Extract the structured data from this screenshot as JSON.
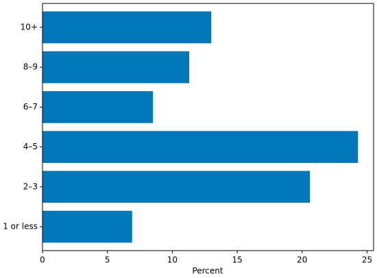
{
  "chart_data": {
    "type": "barh",
    "xlabel": "Percent",
    "categories": [
      "1 or less",
      "2–3",
      "4–5",
      "6–7",
      "8–9",
      "10+"
    ],
    "values": [
      6.9,
      20.6,
      24.3,
      8.5,
      11.3,
      13.0
    ],
    "color": "#0077b8",
    "xlim": [
      0,
      25.5
    ],
    "xticks": [
      0,
      5,
      10,
      15,
      20,
      25
    ]
  }
}
